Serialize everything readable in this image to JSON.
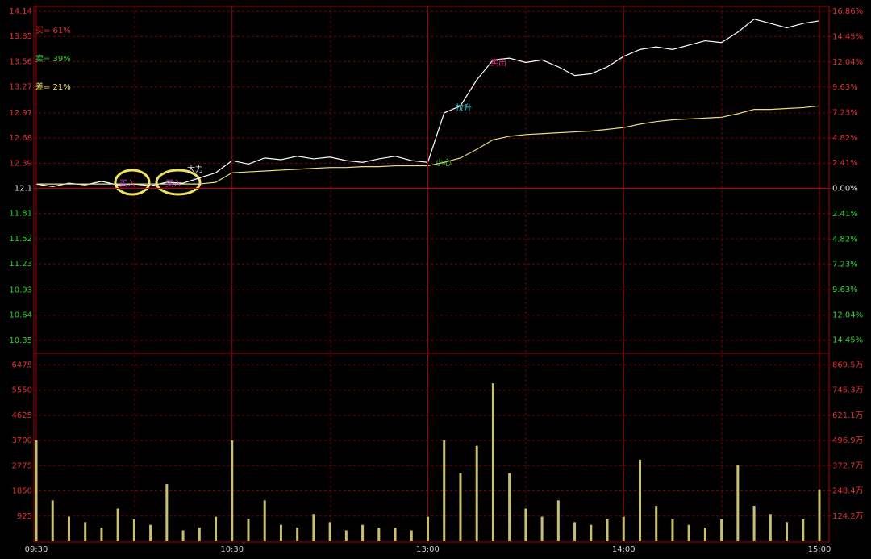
{
  "chart_data": [
    {
      "type": "line",
      "legend": [
        "买= 61%",
        "卖= 39%",
        "差= 21%"
      ],
      "annotations": [
        "买入",
        "买入",
        "大力",
        "小心",
        "拉升",
        "卖出"
      ],
      "x": [
        0,
        5,
        10,
        15,
        20,
        25,
        30,
        35,
        40,
        45,
        50,
        55,
        60,
        65,
        70,
        75,
        80,
        85,
        90,
        95,
        100,
        105,
        110,
        115,
        120,
        125,
        130,
        135,
        140,
        145,
        150,
        155,
        160,
        165,
        170,
        175,
        180,
        185,
        190,
        195,
        200,
        205,
        210,
        215,
        220,
        225,
        230,
        235,
        240
      ],
      "xlim": [
        0,
        240
      ],
      "xticks": [
        {
          "value": 0,
          "label": "09:30"
        },
        {
          "value": 60,
          "label": "10:30"
        },
        {
          "value": 120,
          "label": "13:00"
        },
        {
          "value": 180,
          "label": "14:00"
        },
        {
          "value": 240,
          "label": "15:00"
        }
      ],
      "series": [
        {
          "name": "价格",
          "color": "#ffffff",
          "values": [
            12.15,
            12.12,
            12.16,
            12.14,
            12.18,
            12.14,
            12.15,
            12.13,
            12.17,
            12.16,
            12.22,
            12.28,
            12.42,
            12.38,
            12.45,
            12.43,
            12.47,
            12.44,
            12.46,
            12.42,
            12.4,
            12.44,
            12.47,
            12.42,
            12.4,
            12.97,
            13.05,
            13.35,
            13.58,
            13.6,
            13.55,
            13.58,
            13.5,
            13.4,
            13.42,
            13.5,
            13.62,
            13.7,
            13.73,
            13.7,
            13.75,
            13.8,
            13.78,
            13.9,
            14.05,
            14.0,
            13.95,
            14.0,
            14.03
          ]
        },
        {
          "name": "均价",
          "color": "#e8e07a",
          "values": [
            12.15,
            12.15,
            12.15,
            12.15,
            12.15,
            12.15,
            12.15,
            12.15,
            12.15,
            12.15,
            12.15,
            12.17,
            12.28,
            12.29,
            12.3,
            12.31,
            12.32,
            12.33,
            12.34,
            12.34,
            12.35,
            12.35,
            12.36,
            12.36,
            12.36,
            12.4,
            12.45,
            12.55,
            12.66,
            12.7,
            12.72,
            12.73,
            12.74,
            12.75,
            12.76,
            12.78,
            12.8,
            12.84,
            12.87,
            12.89,
            12.9,
            12.91,
            12.92,
            12.96,
            13.01,
            13.01,
            13.02,
            13.03,
            13.05
          ]
        }
      ],
      "ylim": [
        10.2,
        14.14
      ],
      "yticks": [
        14.14,
        13.85,
        13.56,
        13.27,
        12.97,
        12.68,
        12.39,
        12.1,
        11.81,
        11.52,
        11.23,
        10.93,
        10.64,
        10.35
      ],
      "y2lim": [
        -15.7,
        16.86
      ],
      "y2ticks": [
        {
          "value": 16.86,
          "label": "16.86%"
        },
        {
          "value": 14.45,
          "label": "14.45%"
        },
        {
          "value": 12.04,
          "label": "12.04%"
        },
        {
          "value": 9.63,
          "label": "9.63%"
        },
        {
          "value": 7.23,
          "label": "7.23%"
        },
        {
          "value": 4.82,
          "label": "4.82%"
        },
        {
          "value": 2.41,
          "label": "2.41%"
        },
        {
          "value": 0,
          "label": "0.00%"
        },
        {
          "value": -2.41,
          "label": "2.41%"
        },
        {
          "value": -4.82,
          "label": "4.82%"
        },
        {
          "value": -7.23,
          "label": "7.23%"
        },
        {
          "value": -9.63,
          "label": "9.63%"
        },
        {
          "value": -12.04,
          "label": "12.04%"
        },
        {
          "value": -14.45,
          "label": "14.45%"
        }
      ],
      "grid": true
    },
    {
      "type": "bar",
      "color": "#c8c070",
      "x": [
        0,
        5,
        10,
        15,
        20,
        25,
        30,
        35,
        40,
        45,
        50,
        55,
        60,
        65,
        70,
        75,
        80,
        85,
        90,
        95,
        100,
        105,
        110,
        115,
        120,
        125,
        130,
        135,
        140,
        145,
        150,
        155,
        160,
        165,
        170,
        175,
        180,
        185,
        190,
        195,
        200,
        205,
        210,
        215,
        220,
        225,
        230,
        235,
        240
      ],
      "xlim": [
        0,
        240
      ],
      "values": [
        3700,
        1500,
        900,
        700,
        500,
        1200,
        800,
        600,
        2100,
        400,
        500,
        900,
        3700,
        800,
        1500,
        600,
        500,
        1000,
        700,
        400,
        600,
        500,
        500,
        400,
        900,
        3700,
        2500,
        3500,
        5800,
        2500,
        1200,
        900,
        1500,
        700,
        600,
        800,
        900,
        3000,
        1300,
        800,
        600,
        500,
        800,
        2800,
        1300,
        1000,
        700,
        800,
        1900
      ],
      "ylim": [
        0,
        6900
      ],
      "yticks": [
        6475,
        5550,
        4625,
        3700,
        2775,
        1850,
        925
      ],
      "y2lim": [
        0,
        926.6
      ],
      "y2ticks": [
        {
          "value": 869.5,
          "label": "869.5万"
        },
        {
          "value": 745.3,
          "label": "745.3万"
        },
        {
          "value": 621.1,
          "label": "621.1万"
        },
        {
          "value": 496.9,
          "label": "496.9万"
        },
        {
          "value": 372.7,
          "label": "372.7万"
        },
        {
          "value": 248.4,
          "label": "248.4万"
        },
        {
          "value": 124.2,
          "label": "124.2万"
        }
      ],
      "grid": true
    }
  ]
}
